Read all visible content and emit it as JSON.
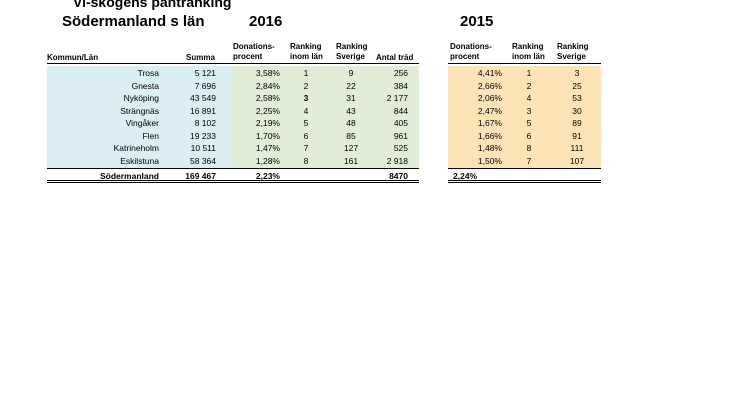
{
  "title": "Vi-skogens pantranking",
  "subtitle": "Södermanland s län",
  "years": [
    "2016",
    "2015"
  ],
  "headers": {
    "kommun": "Kommun/Län",
    "summa": "Summa",
    "donation_2016": [
      "Donations-",
      "procent"
    ],
    "ranking_lan_2016": [
      "Ranking",
      "inom län"
    ],
    "ranking_sverige_2016": [
      "Ranking",
      "Sverige"
    ],
    "antal_trad": "Antal träd",
    "donation_2015": [
      "Donations-",
      "procent"
    ],
    "ranking_lan_2015": [
      "Ranking",
      "inom län"
    ],
    "ranking_sverige_2015": [
      "Ranking",
      "Sverige"
    ]
  },
  "rows": [
    {
      "kommun": "Trosa",
      "summa": "5 121",
      "don16": "3,58%",
      "rl16": "1",
      "rs16": "9",
      "trad": "256",
      "don15": "4,41%",
      "rl15": "1",
      "rs15": "3"
    },
    {
      "kommun": "Gnesta",
      "summa": "7 696",
      "don16": "2,84%",
      "rl16": "2",
      "rs16": "22",
      "trad": "384",
      "don15": "2,66%",
      "rl15": "2",
      "rs15": "25"
    },
    {
      "kommun": "Nyköping",
      "summa": "43 549",
      "don16": "2,58%",
      "rl16": "3",
      "rs16": "31",
      "trad": "2 177",
      "don15": "2,06%",
      "rl15": "4",
      "rs15": "53"
    },
    {
      "kommun": "Strängnäs",
      "summa": "16 891",
      "don16": "2,25%",
      "rl16": "4",
      "rs16": "43",
      "trad": "844",
      "don15": "2,47%",
      "rl15": "3",
      "rs15": "30"
    },
    {
      "kommun": "Vingåker",
      "summa": "8 102",
      "don16": "2,19%",
      "rl16": "5",
      "rs16": "48",
      "trad": "405",
      "don15": "1,67%",
      "rl15": "5",
      "rs15": "89"
    },
    {
      "kommun": "Flen",
      "summa": "19 233",
      "don16": "1,70%",
      "rl16": "6",
      "rs16": "85",
      "trad": "961",
      "don15": "1,66%",
      "rl15": "6",
      "rs15": "91"
    },
    {
      "kommun": "Katrineholm",
      "summa": "10 511",
      "don16": "1,47%",
      "rl16": "7",
      "rs16": "127",
      "trad": "525",
      "don15": "1,48%",
      "rl15": "8",
      "rs15": "111"
    },
    {
      "kommun": "Eskilstuna",
      "summa": "58 364",
      "don16": "1,28%",
      "rl16": "8",
      "rs16": "161",
      "trad": "2 918",
      "don15": "1,50%",
      "rl15": "7",
      "rs15": "107"
    }
  ],
  "total": {
    "kommun": "Södermanland",
    "summa": "169 467",
    "don16": "2,23%",
    "trad": "8470",
    "don15": "2,24%"
  },
  "colors": {
    "blue": "#dbeef3",
    "green": "#e0eed8",
    "orange": "#fce4b8"
  }
}
